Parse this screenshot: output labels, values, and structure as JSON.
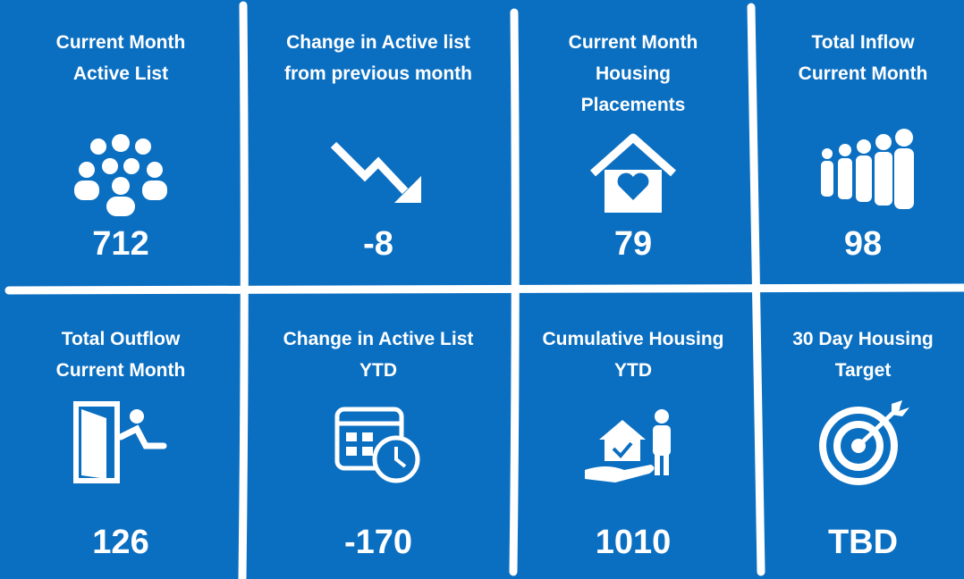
{
  "tiles": [
    {
      "title_lines": [
        "Current Month",
        "Active List"
      ],
      "value": 712
    },
    {
      "title_lines": [
        "Change in Active list",
        "from previous month"
      ],
      "value": -8
    },
    {
      "title_lines": [
        "Current Month",
        "Housing",
        "Placements"
      ],
      "value": 79
    },
    {
      "title_lines": [
        "Total Inflow",
        "Current Month"
      ],
      "value": 98
    },
    {
      "title_lines": [
        "Total Outflow",
        "Current Month"
      ],
      "value": 126
    },
    {
      "title_lines": [
        "Change in Active List",
        "YTD"
      ],
      "value": -170
    },
    {
      "title_lines": [
        "Cumulative Housing",
        "YTD"
      ],
      "value": 1010
    },
    {
      "title_lines": [
        "30 Day Housing",
        "Target"
      ],
      "value": "TBD"
    }
  ]
}
